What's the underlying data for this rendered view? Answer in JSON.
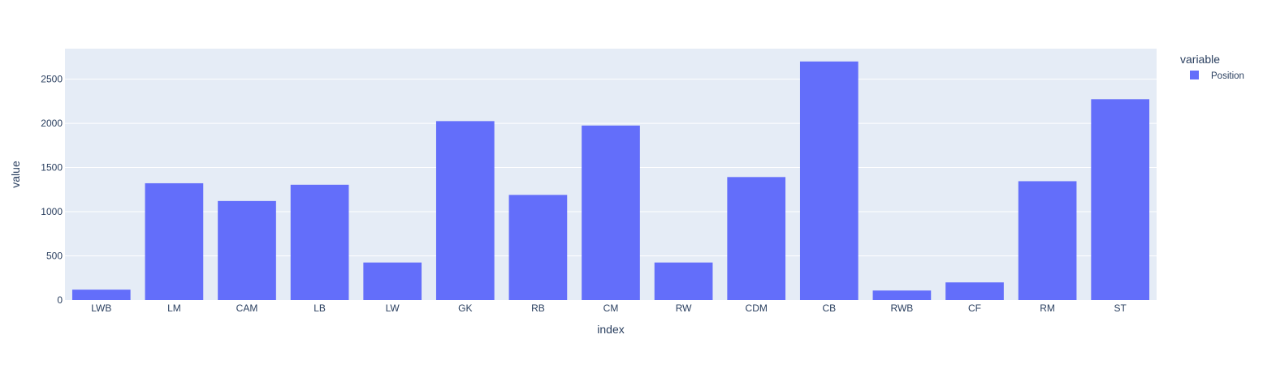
{
  "chart_data": {
    "type": "bar",
    "categories": [
      "LWB",
      "LM",
      "CAM",
      "LB",
      "LW",
      "GK",
      "RB",
      "CM",
      "RW",
      "CDM",
      "CB",
      "RWB",
      "CF",
      "RM",
      "ST"
    ],
    "series": [
      {
        "name": "Position",
        "values": [
          118,
          1322,
          1121,
          1305,
          425,
          2025,
          1190,
          1975,
          425,
          1392,
          2700,
          108,
          200,
          1345,
          2273
        ]
      }
    ],
    "xlabel": "index",
    "ylabel": "value",
    "ylim": [
      0,
      2845
    ],
    "yticks": [
      0,
      500,
      1000,
      1500,
      2000,
      2500
    ],
    "grid": true,
    "legend": {
      "title": "variable",
      "placement": "top-right"
    }
  },
  "colors": {
    "bar": "#636efa",
    "plot_bg": "#e5ecf6",
    "grid": "#ffffff",
    "text": "#2a3f5f"
  }
}
